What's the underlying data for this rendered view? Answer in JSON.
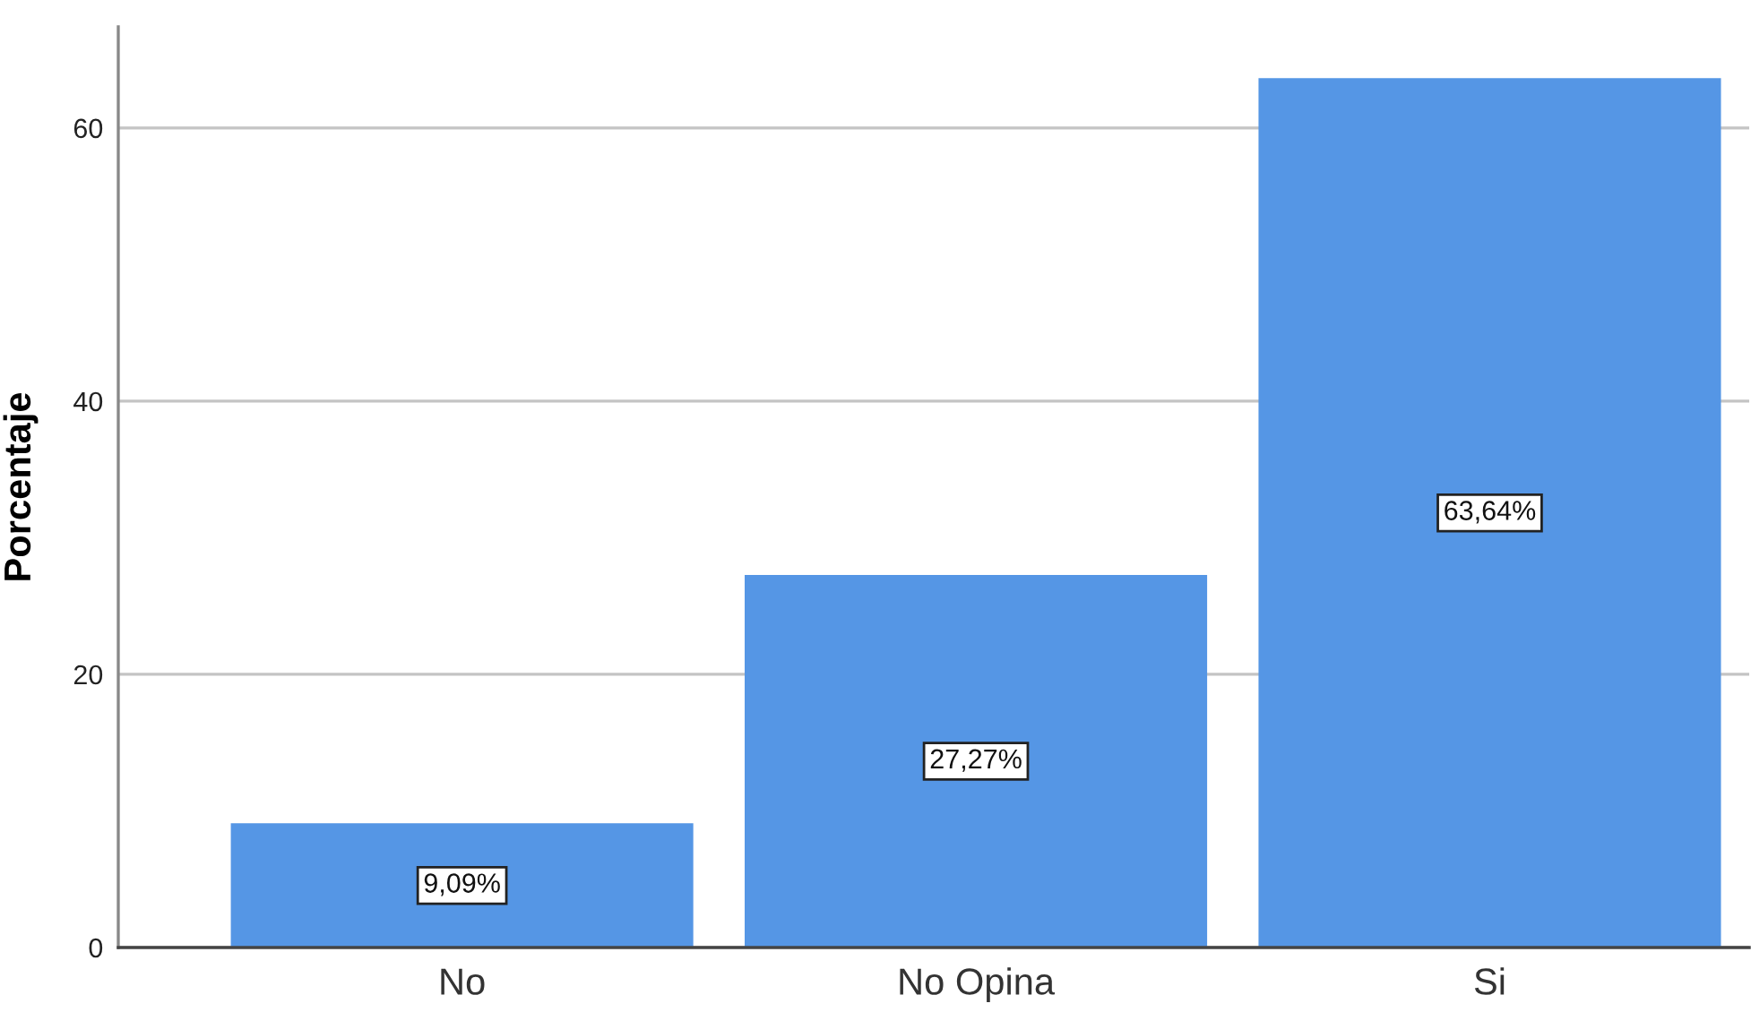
{
  "chart_data": {
    "type": "bar",
    "ylabel": "Porcentaje",
    "categories": [
      "No",
      "No Opina",
      "Si"
    ],
    "values": [
      9.09,
      27.27,
      63.64
    ],
    "value_labels": [
      "9,09%",
      "27,27%",
      "63,64%"
    ],
    "color": "#5596e5",
    "ylim": [
      0,
      67.4
    ],
    "yticks": [
      0,
      20,
      40,
      60
    ],
    "grid": "y"
  }
}
